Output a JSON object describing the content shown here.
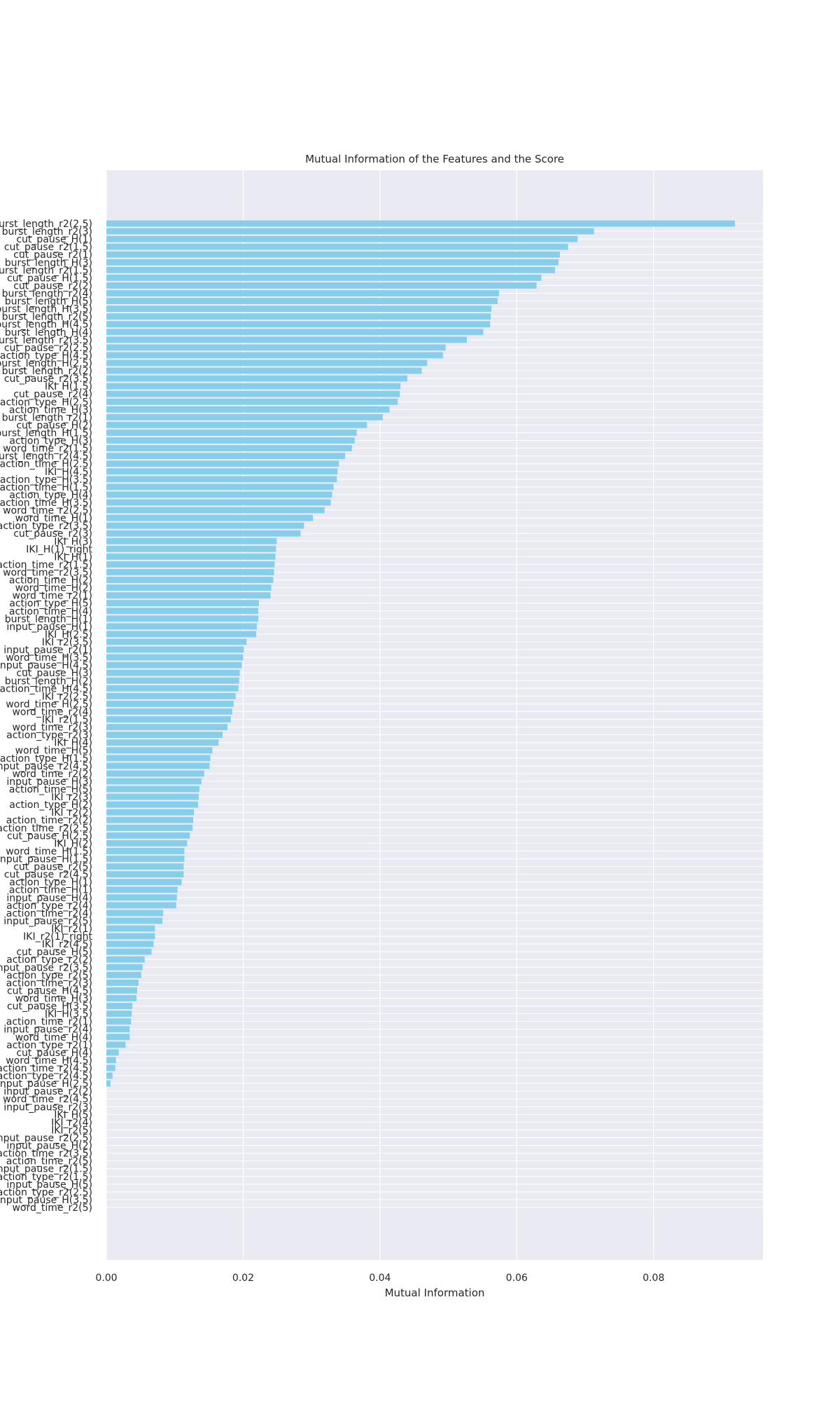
{
  "chart_data": {
    "type": "bar",
    "orientation": "horizontal",
    "title": "Mutual Information of the Features and the Score",
    "xlabel": "Mutual Information",
    "ylabel": "",
    "xlim": [
      0,
      0.096
    ],
    "xticks": [
      {
        "value": 0.0,
        "label": "0.00"
      },
      {
        "value": 0.02,
        "label": "0.02"
      },
      {
        "value": 0.04,
        "label": "0.04"
      },
      {
        "value": 0.06,
        "label": "0.06"
      },
      {
        "value": 0.08,
        "label": "0.08"
      }
    ],
    "grid": true,
    "bar_color": "#87ceeb",
    "background_color": "#eaeaf2",
    "categories": [
      "word_time_r2(5)",
      "input_pause_H(3.5)",
      "action_type_r2(2.5)",
      "input_pause_H(5)",
      "action_type_r2(1.5)",
      "input_pause_r2(1.5)",
      "action_time_r2(5)",
      "action_time_r2(3.5)",
      "input_pause_H(2)",
      "input_pause_r2(2.5)",
      "IKI_r2(5)",
      "IKI_r2(4)",
      "IKI_H(5)",
      "input_pause_r2(3)",
      "word_time_r2(4.5)",
      "input_pause_r2(2)",
      "input_pause_H(2.5)",
      "action_type_r2(4.5)",
      "action_time_r2(4.5)",
      "word_time_H(4.5)",
      "cut_pause_H(4)",
      "action_type_r2(1)",
      "word_time_H(4)",
      "input_pause_r2(4)",
      "action_time_r2(1)",
      "IKI_H(3.5)",
      "cut_pause_H(3.5)",
      "word_time_H(3)",
      "cut_pause_H(4.5)",
      "action_time_r2(3)",
      "action_type_r2(5)",
      "input_pause_r2(3.5)",
      "action_type_r2(2)",
      "cut_pause_H(5)",
      "IKI_r2(4.5)",
      "IKI_r2(1)_right",
      "IKI_r2(1)",
      "input_pause_r2(5)",
      "action_time_r2(4)",
      "action_type_r2(4)",
      "input_pause_H(4)",
      "action_time_H(1)",
      "action_type_H(1)",
      "cut_pause_r2(4.5)",
      "cut_pause_r2(5)",
      "input_pause_H(1.5)",
      "word_time_H(1.5)",
      "IKI_H(2)",
      "cut_pause_H(2.5)",
      "action_time_r2(2.5)",
      "action_time_r2(2)",
      "IKI_r2(2)",
      "action_type_H(2)",
      "IKI_r2(3)",
      "action_time_H(5)",
      "input_pause_H(3)",
      "word_time_r2(2)",
      "input_pause_r2(4.5)",
      "action_type_H(1.5)",
      "word_time_H(5)",
      "IKI_H(4)",
      "action_type_r2(3)",
      "word_time_r2(3)",
      "IKI_r2(1.5)",
      "word_time_r2(4)",
      "word_time_H(2.5)",
      "IKI_r2(2.5)",
      "action_time_H(4.5)",
      "burst_length_H(2)",
      "cut_pause_H(3)",
      "input_pause_H(4.5)",
      "word_time_H(3.5)",
      "input_pause_r2(1)",
      "IKI_r2(3.5)",
      "IKI_H(2.5)",
      "input_pause_H(1)",
      "burst_length_H(1)",
      "action_time_H(4)",
      "action_type_H(5)",
      "word_time_r2(1)",
      "word_time_H(2)",
      "action_time_H(2)",
      "word_time_r2(3.5)",
      "action_time_r2(1.5)",
      "IKI_H(1)",
      "IKI_H(1)_right",
      "IKI_H(3)",
      "cut_pause_r2(3)",
      "action_type_r2(3.5)",
      "word_time_H(1)",
      "word_time_r2(2.5)",
      "action_time_H(3.5)",
      "action_type_H(4)",
      "action_time_H(1.5)",
      "action_type_H(3.5)",
      "IKI_H(4.5)",
      "action_time_H(2.5)",
      "burst_length_r2(4.5)",
      "word_time_r2(1.5)",
      "action_type_H(3)",
      "burst_length_H(1.5)",
      "cut_pause_H(2)",
      "burst_length_r2(1)",
      "action_time_H(3)",
      "action_type_H(2.5)",
      "cut_pause_r2(4)",
      "IKI_H(1.5)",
      "cut_pause_r2(3.5)",
      "burst_length_r2(2)",
      "burst_length_H(2.5)",
      "action_type_H(4.5)",
      "cut_pause_r2(2.5)",
      "burst_length_r2(3.5)",
      "burst_length_H(4)",
      "burst_length_H(4.5)",
      "burst_length_r2(5)",
      "burst_length_H(3.5)",
      "burst_length_H(5)",
      "burst_length_r2(4)",
      "cut_pause_r2(2)",
      "cut_pause_H(1.5)",
      "burst_length_r2(1.5)",
      "burst_length_H(3)",
      "cut_pause_r2(1)",
      "cut_pause_r2(1.5)",
      "cut_pause_H(1)",
      "burst_length_r2(3)",
      "burst_length_r2(2.5)"
    ],
    "values": [
      0.0,
      0.0,
      0.0,
      0.0,
      0.0,
      0.0,
      0.0,
      0.0,
      0.0,
      0.0,
      0.0,
      0.0,
      0.0,
      0.0,
      0.0,
      0.0,
      0.0006,
      0.0009,
      0.0013,
      0.0014,
      0.0018,
      0.0028,
      0.0034,
      0.0034,
      0.0036,
      0.0037,
      0.0038,
      0.0044,
      0.0045,
      0.0047,
      0.0051,
      0.0053,
      0.0056,
      0.0066,
      0.0069,
      0.0071,
      0.0071,
      0.0082,
      0.0083,
      0.0102,
      0.0103,
      0.0104,
      0.011,
      0.0113,
      0.0113,
      0.0114,
      0.0114,
      0.0118,
      0.0122,
      0.0126,
      0.0127,
      0.0128,
      0.0134,
      0.0135,
      0.0136,
      0.0139,
      0.0143,
      0.0151,
      0.0152,
      0.0155,
      0.0164,
      0.017,
      0.0177,
      0.0182,
      0.0184,
      0.0186,
      0.0189,
      0.0193,
      0.0194,
      0.0195,
      0.0198,
      0.02,
      0.0201,
      0.0205,
      0.0219,
      0.022,
      0.0222,
      0.0222,
      0.0223,
      0.024,
      0.0241,
      0.0244,
      0.0245,
      0.0246,
      0.0247,
      0.0248,
      0.0249,
      0.0284,
      0.0289,
      0.0302,
      0.0319,
      0.0328,
      0.033,
      0.0332,
      0.0337,
      0.0338,
      0.034,
      0.0349,
      0.0359,
      0.0363,
      0.0366,
      0.0381,
      0.0404,
      0.0414,
      0.0426,
      0.0429,
      0.043,
      0.044,
      0.0461,
      0.0469,
      0.0492,
      0.0496,
      0.0527,
      0.0551,
      0.0561,
      0.0562,
      0.0563,
      0.0572,
      0.0574,
      0.0629,
      0.0636,
      0.0656,
      0.0661,
      0.0663,
      0.0675,
      0.0689,
      0.0713,
      0.0919
    ]
  }
}
